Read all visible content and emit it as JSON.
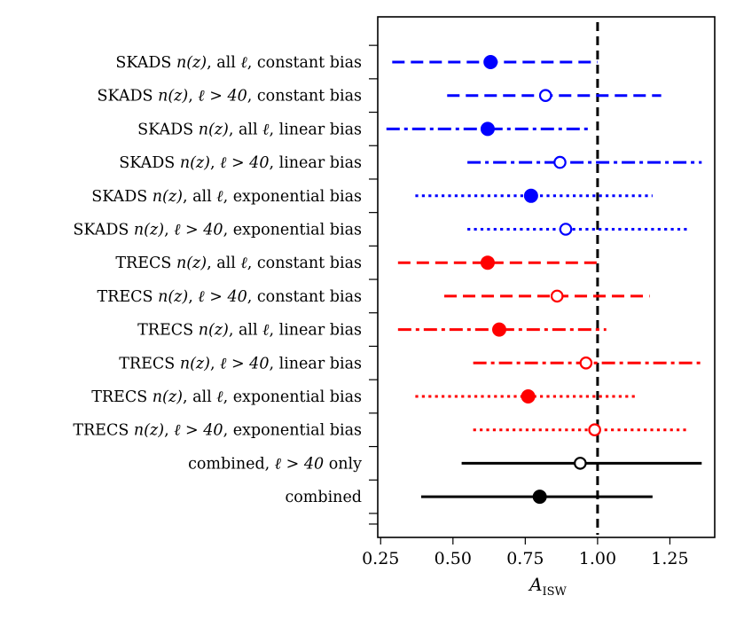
{
  "chart_data": {
    "type": "errorbar",
    "xlabel": "A",
    "xlabel_sub": "ISW",
    "xlim": [
      0.24,
      1.405
    ],
    "xticks": [
      0.25,
      0.5,
      0.75,
      1.0,
      1.25
    ],
    "xtick_labels": [
      "0.25",
      "0.50",
      "0.75",
      "1.00",
      "1.25"
    ],
    "reference_line": 1.0,
    "grid": false,
    "rows": [
      {
        "label": "SKADS $n(z)$, all $\\ell$, constant bias",
        "value": 0.63,
        "low": 0.29,
        "high": 1.0,
        "color": "#0000ff",
        "linestyle": "dashed",
        "filled": true
      },
      {
        "label": "SKADS $n(z)$, $\\ell > 40$, constant bias",
        "value": 0.82,
        "low": 0.48,
        "high": 1.22,
        "color": "#0000ff",
        "linestyle": "dashed",
        "filled": false
      },
      {
        "label": "SKADS $n(z)$, all $\\ell$, linear bias",
        "value": 0.62,
        "low": 0.27,
        "high": 0.98,
        "color": "#0000ff",
        "linestyle": "dashdot",
        "filled": true
      },
      {
        "label": "SKADS $n(z)$, $\\ell > 40$, linear bias",
        "value": 0.87,
        "low": 0.55,
        "high": 1.36,
        "color": "#0000ff",
        "linestyle": "dashdot",
        "filled": false
      },
      {
        "label": "SKADS $n(z)$, all $\\ell$, exponential bias",
        "value": 0.77,
        "low": 0.37,
        "high": 1.19,
        "color": "#0000ff",
        "linestyle": "dotted",
        "filled": true
      },
      {
        "label": "SKADS $n(z)$, $\\ell > 40$, exponential bias",
        "value": 0.89,
        "low": 0.55,
        "high": 1.32,
        "color": "#0000ff",
        "linestyle": "dotted",
        "filled": false
      },
      {
        "label": "TRECS $n(z)$, all $\\ell$, constant bias",
        "value": 0.62,
        "low": 0.31,
        "high": 1.0,
        "color": "#ff0000",
        "linestyle": "dashed",
        "filled": true
      },
      {
        "label": "TRECS $n(z)$, $\\ell > 40$, constant bias",
        "value": 0.86,
        "low": 0.47,
        "high": 1.18,
        "color": "#ff0000",
        "linestyle": "dashed",
        "filled": false
      },
      {
        "label": "TRECS $n(z)$, all $\\ell$, linear bias",
        "value": 0.66,
        "low": 0.31,
        "high": 1.03,
        "color": "#ff0000",
        "linestyle": "dashdot",
        "filled": true
      },
      {
        "label": "TRECS $n(z)$, $\\ell > 40$, linear bias",
        "value": 0.96,
        "low": 0.57,
        "high": 1.37,
        "color": "#ff0000",
        "linestyle": "dashdot",
        "filled": false
      },
      {
        "label": "TRECS $n(z)$, all $\\ell$, exponential bias",
        "value": 0.76,
        "low": 0.37,
        "high": 1.14,
        "color": "#ff0000",
        "linestyle": "dotted",
        "filled": true
      },
      {
        "label": "TRECS $n(z)$, $\\ell > 40$, exponential bias",
        "value": 0.99,
        "low": 0.57,
        "high": 1.31,
        "color": "#ff0000",
        "linestyle": "dotted",
        "filled": false
      },
      {
        "label": "combined, $\\ell > 40$ only",
        "value": 0.94,
        "low": 0.53,
        "high": 1.36,
        "color": "#000000",
        "linestyle": "solid",
        "filled": false
      },
      {
        "label": "combined",
        "value": 0.8,
        "low": 0.39,
        "high": 1.19,
        "color": "#000000",
        "linestyle": "solid",
        "filled": true
      }
    ]
  }
}
